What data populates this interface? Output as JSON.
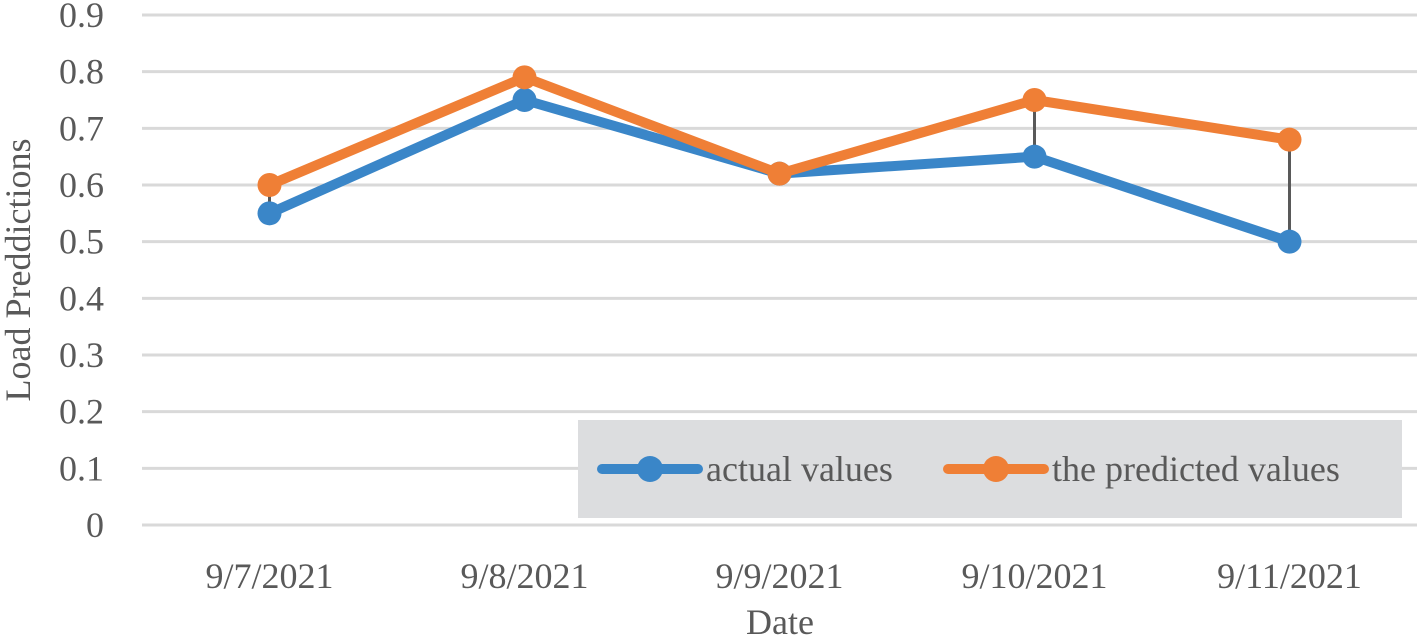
{
  "chart_data": {
    "type": "line",
    "title": "",
    "xlabel": "Date",
    "ylabel": "Load Preddictions",
    "categories": [
      "9/7/2021",
      "9/8/2021",
      "9/9/2021",
      "9/10/2021",
      "9/11/2021"
    ],
    "ylim": [
      0,
      0.9
    ],
    "yticks": [
      "0",
      "0.1",
      "0.2",
      "0.3",
      "0.4",
      "0.5",
      "0.6",
      "0.7",
      "0.8",
      "0.9"
    ],
    "grid": true,
    "drop_lines": true,
    "legend_position": "bottom-right",
    "series": [
      {
        "name": "actual values",
        "color": "#3a86c8",
        "values": [
          0.55,
          0.75,
          0.62,
          0.65,
          0.5
        ]
      },
      {
        "name": "the predicted values",
        "color": "#ef7f36",
        "values": [
          0.6,
          0.79,
          0.62,
          0.75,
          0.68
        ]
      }
    ]
  },
  "colors": {
    "legend_background": "#dcdddf",
    "gridline": "#d9d9d9",
    "text": "#595959",
    "drop_line": "#595959"
  }
}
